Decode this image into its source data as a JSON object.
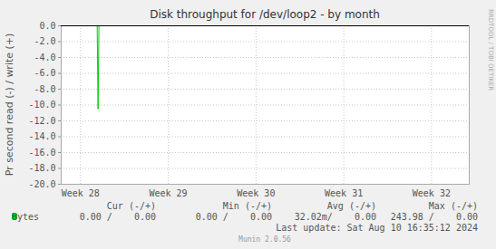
{
  "chart_data": {
    "type": "line",
    "title": "Disk throughput for /dev/loop2 - by month",
    "y_label": "Pr second read (-) / write (+)",
    "side_text": "RRDTOOL / TOBI OETIKER",
    "x": [
      28.19,
      28.2,
      28.21,
      32.43
    ],
    "series": [
      {
        "name": "Bytes",
        "color": "#00cc00",
        "values": [
          0,
          -10.5,
          0,
          0
        ]
      }
    ],
    "xlim": [
      27.78,
      32.43
    ],
    "xticks": [
      {
        "value": 28,
        "label": "Week 28"
      },
      {
        "value": 29,
        "label": "Week 29"
      },
      {
        "value": 30,
        "label": "Week 30"
      },
      {
        "value": 31,
        "label": "Week 31"
      },
      {
        "value": 32,
        "label": "Week 32"
      }
    ],
    "ylim": [
      -20,
      0
    ],
    "yticks": [
      {
        "value": 0,
        "label": "0.0"
      },
      {
        "value": -2,
        "label": "-2.0"
      },
      {
        "value": -4,
        "label": "-4.0"
      },
      {
        "value": -6,
        "label": "-6.0"
      },
      {
        "value": -8,
        "label": "-8.0"
      },
      {
        "value": -10,
        "label": "-10.0"
      },
      {
        "value": -12,
        "label": "-12.0"
      },
      {
        "value": -14,
        "label": "-14.0"
      },
      {
        "value": -16,
        "label": "-16.0"
      },
      {
        "value": -18,
        "label": "-18.0"
      },
      {
        "value": -20,
        "label": "-20.0"
      }
    ],
    "grid": true,
    "legend_table": {
      "columns": [
        "Cur (-/+)",
        "Min (-/+)",
        "Avg (-/+)",
        "Max (-/+)"
      ],
      "rows": [
        {
          "name": "Bytes",
          "cells": [
            "0.00 /    0.00",
            "0.00 /    0.00",
            "32.02m/    0.00",
            "243.98 /    0.00"
          ]
        }
      ]
    },
    "footer": [
      "Last update: Sat Aug 10 16:35:12 2024",
      "Munin 2.0.56"
    ]
  }
}
